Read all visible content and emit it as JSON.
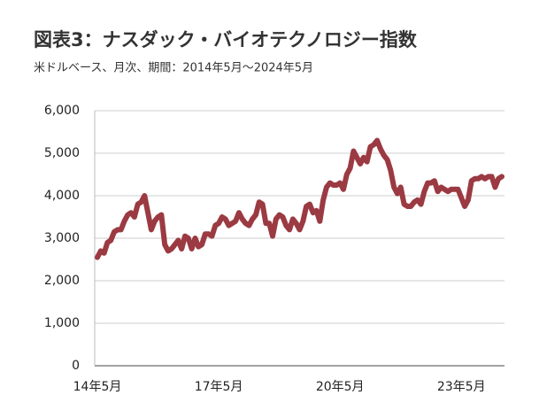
{
  "chart_data": {
    "type": "line",
    "title": "図表3：ナスダック・バイオテクノロジー指数",
    "subtitle": "米ドルベース、月次、期間：2014年5月～2024年5月",
    "categories": [
      "14年5月",
      null,
      null,
      null,
      null,
      null,
      null,
      null,
      null,
      null,
      null,
      null,
      null,
      null,
      null,
      null,
      null,
      null,
      null,
      null,
      null,
      null,
      null,
      null,
      null,
      null,
      null,
      null,
      null,
      null,
      null,
      null,
      null,
      null,
      null,
      null,
      "17年5月",
      null,
      null,
      null,
      null,
      null,
      null,
      null,
      null,
      null,
      null,
      null,
      null,
      null,
      null,
      null,
      null,
      null,
      null,
      null,
      null,
      null,
      null,
      null,
      null,
      null,
      null,
      null,
      null,
      null,
      null,
      null,
      null,
      null,
      null,
      null,
      "20年5月",
      null,
      null,
      null,
      null,
      null,
      null,
      null,
      null,
      null,
      null,
      null,
      null,
      null,
      null,
      null,
      null,
      null,
      null,
      null,
      null,
      null,
      null,
      null,
      null,
      null,
      null,
      null,
      null,
      null,
      null,
      null,
      null,
      null,
      null,
      null,
      "23年5月",
      null,
      null,
      null,
      null,
      null,
      null,
      null,
      null,
      null,
      null,
      null,
      null
    ],
    "values": [
      2550,
      2700,
      2650,
      2900,
      2950,
      3150,
      3200,
      3200,
      3400,
      3550,
      3600,
      3500,
      3800,
      3850,
      4000,
      3600,
      3200,
      3400,
      3500,
      3550,
      2850,
      2700,
      2750,
      2850,
      2950,
      2750,
      3050,
      3000,
      2750,
      3000,
      2800,
      2850,
      3100,
      3100,
      3050,
      3300,
      3350,
      3500,
      3450,
      3300,
      3350,
      3400,
      3600,
      3450,
      3350,
      3300,
      3450,
      3550,
      3850,
      3800,
      3350,
      3350,
      3050,
      3450,
      3550,
      3500,
      3300,
      3200,
      3450,
      3350,
      3200,
      3400,
      3750,
      3800,
      3600,
      3650,
      3400,
      3900,
      4200,
      4300,
      4250,
      4250,
      4300,
      4150,
      4500,
      4650,
      5050,
      4900,
      4750,
      4900,
      4800,
      5150,
      5200,
      5300,
      5100,
      4950,
      4850,
      4600,
      4200,
      4050,
      4200,
      3800,
      3750,
      3750,
      3850,
      3900,
      3800,
      4100,
      4300,
      4300,
      4350,
      4100,
      4200,
      4150,
      4100,
      4150,
      4150,
      4150,
      3950,
      3750,
      3900,
      4350,
      4400,
      4400,
      4450,
      4400,
      4450,
      4450,
      4200,
      4400,
      4450
    ],
    "color": "#9b3a42",
    "ylim": [
      0,
      6000
    ],
    "yticks": [
      0,
      {
        "value": 1000,
        "label": "1,000"
      },
      {
        "value": 2000,
        "label": "2,000"
      },
      {
        "value": 3000,
        "label": "3,000"
      },
      {
        "value": 4000,
        "label": "4,000"
      },
      {
        "value": 5000,
        "label": "5,000"
      },
      {
        "value": 6000,
        "label": "6,000"
      }
    ],
    "grid": true
  }
}
